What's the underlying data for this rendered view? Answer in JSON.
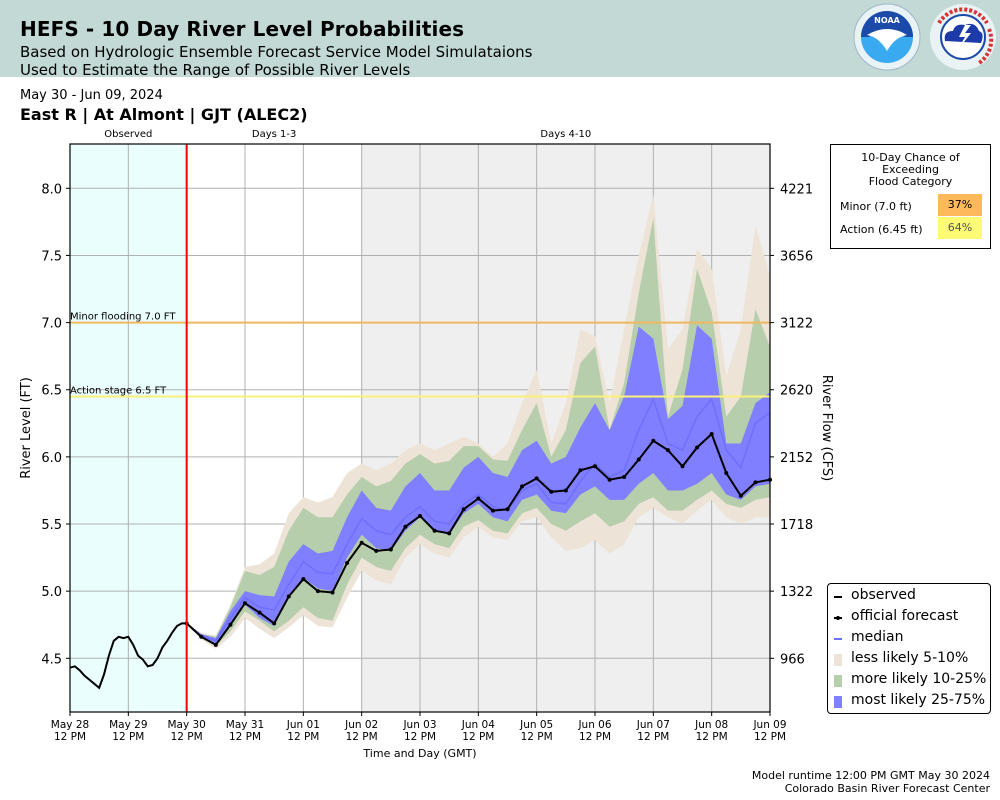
{
  "header": {
    "title": "HEFS - 10 Day River Level Probabilities",
    "subtitle_line1": "Based on Hydrologic Ensemble Forecast Service Model Simulataions",
    "subtitle_line2": "Used to Estimate the Range of Possible River Levels",
    "logos": [
      "noaa-logo",
      "nws-logo"
    ]
  },
  "date_range": "May 30 - Jun 09, 2024",
  "station": "East R | At Almont | GJT (ALEC2)",
  "flood_box": {
    "title_lines": [
      "10-Day Chance of",
      "Exceeding",
      "Flood Category"
    ],
    "rows": [
      {
        "label": "Minor (7.0 ft)",
        "value": "37%",
        "color": "#fdb95a"
      },
      {
        "label": "Action (6.45 ft)",
        "value": "64%",
        "color": "#fdfa74"
      }
    ]
  },
  "legend": {
    "items": [
      {
        "label": "observed",
        "kind": "line",
        "color": "#000000"
      },
      {
        "label": "official forecast",
        "kind": "line-marker",
        "color": "#000000"
      },
      {
        "label": "median",
        "kind": "line",
        "color": "#6f6fff"
      },
      {
        "label": "less likely 5-10%",
        "kind": "patch",
        "color": "#ede3d6"
      },
      {
        "label": "more likely 10-25%",
        "kind": "patch",
        "color": "#b6ceac"
      },
      {
        "label": "most likely 25-75%",
        "kind": "patch",
        "color": "#7f7fff"
      }
    ]
  },
  "footer": {
    "runtime": "Model runtime 12:00 PM GMT May 30 2024",
    "center": "Colorado Basin River Forecast Center"
  },
  "chart_data": {
    "type": "area",
    "title": "",
    "xlabel": "Time and Day (GMT)",
    "ylabel": "River Level (FT)",
    "ylabel_right": "River Flow (CFS)",
    "x_unit": "hours since May 28 12 PM GMT",
    "xlim": [
      0,
      288
    ],
    "ylim": [
      4.1,
      8.33
    ],
    "grid": true,
    "legend_position": "lower-right (outside plot)",
    "x_ticks": [
      {
        "x": 0,
        "label1": "May 28",
        "label2": "12 PM"
      },
      {
        "x": 24,
        "label1": "May 29",
        "label2": "12 PM"
      },
      {
        "x": 48,
        "label1": "May 30",
        "label2": "12 PM"
      },
      {
        "x": 72,
        "label1": "May 31",
        "label2": "12 PM"
      },
      {
        "x": 96,
        "label1": "Jun 01",
        "label2": "12 PM"
      },
      {
        "x": 120,
        "label1": "Jun 02",
        "label2": "12 PM"
      },
      {
        "x": 144,
        "label1": "Jun 03",
        "label2": "12 PM"
      },
      {
        "x": 168,
        "label1": "Jun 04",
        "label2": "12 PM"
      },
      {
        "x": 192,
        "label1": "Jun 05",
        "label2": "12 PM"
      },
      {
        "x": 216,
        "label1": "Jun 06",
        "label2": "12 PM"
      },
      {
        "x": 240,
        "label1": "Jun 07",
        "label2": "12 PM"
      },
      {
        "x": 264,
        "label1": "Jun 08",
        "label2": "12 PM"
      },
      {
        "x": 288,
        "label1": "Jun 09",
        "label2": "12 PM"
      }
    ],
    "y_ticks": [
      {
        "v": 4.5,
        "label": "4.5",
        "flow": "966"
      },
      {
        "v": 5.0,
        "label": "5.0",
        "flow": "1322"
      },
      {
        "v": 5.5,
        "label": "5.5",
        "flow": "1718"
      },
      {
        "v": 6.0,
        "label": "6.0",
        "flow": "2152"
      },
      {
        "v": 6.5,
        "label": "6.5",
        "flow": "2620"
      },
      {
        "v": 7.0,
        "label": "7.0",
        "flow": "3122"
      },
      {
        "v": 7.5,
        "label": "7.5",
        "flow": "3656"
      },
      {
        "v": 8.0,
        "label": "8.0",
        "flow": "4221"
      }
    ],
    "regions": [
      {
        "label": "Observed",
        "x0": 0,
        "x1": 48,
        "color": "#eafefe"
      },
      {
        "label": "Days 1-3",
        "x0": 48,
        "x1": 120,
        "color": "#ffffff"
      },
      {
        "label": "Days 4-10",
        "x0": 120,
        "x1": 288,
        "color": "#efefef"
      }
    ],
    "forecast_start_x": 48,
    "thresholds": [
      {
        "label": "Minor flooding 7.0 FT",
        "value": 7.0,
        "color": "#f0b85e"
      },
      {
        "label": "Action stage 6.5 FT",
        "value": 6.45,
        "color": "#fbf07a"
      }
    ],
    "observed": {
      "x": [
        0,
        2,
        4,
        6,
        8,
        10,
        12,
        14,
        16,
        18,
        20,
        22,
        24,
        26,
        28,
        30,
        32,
        34,
        36,
        38,
        40,
        42,
        44,
        46,
        48
      ],
      "y": [
        4.43,
        4.44,
        4.41,
        4.37,
        4.34,
        4.31,
        4.28,
        4.38,
        4.52,
        4.63,
        4.66,
        4.65,
        4.66,
        4.6,
        4.52,
        4.49,
        4.44,
        4.45,
        4.5,
        4.58,
        4.63,
        4.69,
        4.74,
        4.76,
        4.76
      ]
    },
    "forecast_x": [
      48,
      54,
      60,
      66,
      72,
      78,
      84,
      90,
      96,
      102,
      108,
      114,
      120,
      126,
      132,
      138,
      144,
      150,
      156,
      162,
      168,
      174,
      180,
      186,
      192,
      198,
      204,
      210,
      216,
      222,
      228,
      234,
      240,
      246,
      252,
      258,
      264,
      270,
      276,
      282,
      288
    ],
    "official_forecast": [
      4.76,
      4.66,
      4.6,
      4.75,
      4.91,
      4.84,
      4.76,
      4.96,
      5.09,
      5.0,
      4.99,
      5.21,
      5.36,
      5.3,
      5.31,
      5.48,
      5.56,
      5.45,
      5.43,
      5.61,
      5.69,
      5.6,
      5.61,
      5.78,
      5.84,
      5.74,
      5.75,
      5.9,
      5.93,
      5.83,
      5.85,
      5.98,
      6.12,
      6.05,
      5.93,
      6.07,
      6.17,
      5.88,
      5.71,
      5.81,
      5.83
    ],
    "median": [
      4.76,
      4.67,
      4.63,
      4.8,
      4.95,
      4.88,
      4.86,
      5.05,
      5.22,
      5.14,
      5.13,
      5.35,
      5.54,
      5.45,
      5.42,
      5.55,
      5.63,
      5.52,
      5.5,
      5.65,
      5.72,
      5.63,
      5.6,
      5.75,
      5.8,
      5.66,
      5.65,
      5.82,
      5.95,
      5.85,
      5.9,
      6.2,
      6.43,
      6.1,
      6.05,
      6.3,
      6.43,
      6.05,
      5.92,
      6.25,
      6.33
    ],
    "bands": [
      {
        "name": "less likely 5-10%",
        "color": "#ede3d6",
        "lower": [
          4.76,
          4.64,
          4.57,
          4.66,
          4.8,
          4.72,
          4.65,
          4.73,
          4.82,
          4.74,
          4.73,
          4.95,
          5.15,
          5.08,
          5.05,
          5.25,
          5.35,
          5.28,
          5.25,
          5.4,
          5.48,
          5.4,
          5.38,
          5.52,
          5.55,
          5.4,
          5.3,
          5.32,
          5.38,
          5.28,
          5.35,
          5.55,
          5.62,
          5.55,
          5.5,
          5.6,
          5.68,
          5.55,
          5.5,
          5.55,
          5.55
        ],
        "upper": [
          4.76,
          4.69,
          4.67,
          4.9,
          5.18,
          5.2,
          5.28,
          5.58,
          5.7,
          5.66,
          5.7,
          5.88,
          5.95,
          5.9,
          5.95,
          6.05,
          6.1,
          6.05,
          6.1,
          6.15,
          6.1,
          6.0,
          6.1,
          6.4,
          6.65,
          6.1,
          6.4,
          6.95,
          6.9,
          6.4,
          6.95,
          7.5,
          7.95,
          6.8,
          6.95,
          7.55,
          7.4,
          6.6,
          6.95,
          7.72,
          7.35
        ]
      },
      {
        "name": "more likely 10-25%",
        "color": "#b6ceac",
        "lower": [
          4.76,
          4.65,
          4.59,
          4.7,
          4.85,
          4.78,
          4.7,
          4.78,
          4.88,
          4.8,
          4.78,
          5.05,
          5.25,
          5.18,
          5.15,
          5.32,
          5.42,
          5.35,
          5.32,
          5.48,
          5.53,
          5.45,
          5.43,
          5.58,
          5.62,
          5.5,
          5.45,
          5.52,
          5.58,
          5.48,
          5.52,
          5.65,
          5.7,
          5.6,
          5.6,
          5.68,
          5.75,
          5.65,
          5.62,
          5.68,
          5.7
        ],
        "upper": [
          4.76,
          4.68,
          4.66,
          4.88,
          5.15,
          5.12,
          5.18,
          5.45,
          5.62,
          5.55,
          5.55,
          5.72,
          5.85,
          5.78,
          5.82,
          5.95,
          6.02,
          5.95,
          5.97,
          6.08,
          6.08,
          5.98,
          5.97,
          6.2,
          6.4,
          6.0,
          6.2,
          6.7,
          6.82,
          6.2,
          6.55,
          7.22,
          7.78,
          6.3,
          6.65,
          7.4,
          7.08,
          6.3,
          6.45,
          7.1,
          6.82
        ]
      },
      {
        "name": "most likely 25-75%",
        "color": "#7f7fff",
        "lower": [
          4.76,
          4.66,
          4.61,
          4.76,
          4.9,
          4.8,
          4.74,
          4.95,
          5.1,
          5.02,
          5.0,
          5.25,
          5.42,
          5.32,
          5.3,
          5.45,
          5.55,
          5.45,
          5.42,
          5.58,
          5.65,
          5.55,
          5.52,
          5.68,
          5.72,
          5.6,
          5.58,
          5.72,
          5.78,
          5.68,
          5.68,
          5.8,
          5.88,
          5.75,
          5.75,
          5.8,
          5.88,
          5.72,
          5.68,
          5.78,
          5.8
        ],
        "upper": [
          4.76,
          4.68,
          4.65,
          4.85,
          5.0,
          4.97,
          4.96,
          5.22,
          5.35,
          5.28,
          5.3,
          5.55,
          5.75,
          5.62,
          5.6,
          5.78,
          5.88,
          5.75,
          5.75,
          5.92,
          6.0,
          5.88,
          5.85,
          6.05,
          6.12,
          5.95,
          6.0,
          6.22,
          6.4,
          6.2,
          6.45,
          6.97,
          6.88,
          6.28,
          6.38,
          6.98,
          6.88,
          6.1,
          6.1,
          6.4,
          6.48
        ]
      }
    ]
  }
}
